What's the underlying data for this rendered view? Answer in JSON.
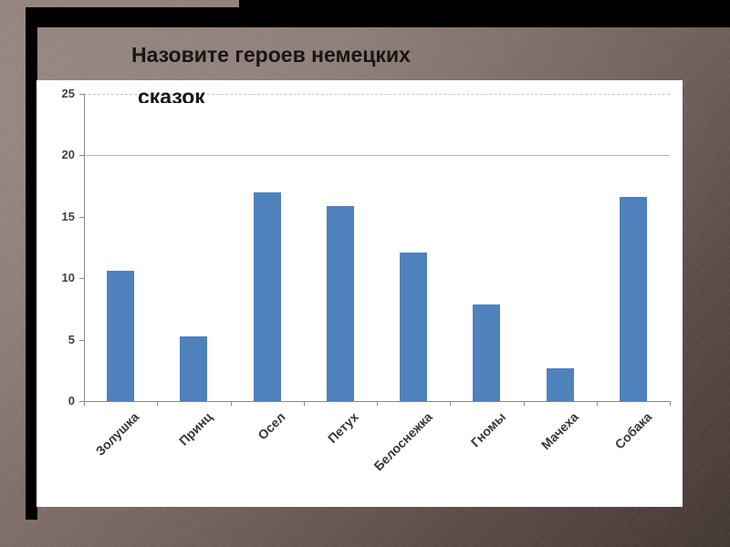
{
  "slide": {
    "title_line1": "Назовите героев немецких",
    "title_line2": "сказок"
  },
  "colors": {
    "bar": "#4f81bd",
    "chart_background": "#ffffff",
    "frame": "#000000",
    "slide_background_light": "#93817b",
    "slide_background_dark": "#453936",
    "title_text": "#161616"
  },
  "chart_data": {
    "type": "bar",
    "title": "",
    "xlabel": "",
    "ylabel": "",
    "categories": [
      "Золушка",
      "Принц",
      "Осел",
      "Петух",
      "Белоснежка",
      "Гномы",
      "Мачеха",
      "Собака"
    ],
    "values": [
      10.6,
      5.3,
      17,
      15.9,
      12.1,
      7.9,
      2.7,
      16.6
    ],
    "ylim": [
      0,
      25
    ],
    "yticks": [
      0,
      5,
      10,
      15,
      20,
      25
    ],
    "gridlines": [
      {
        "value": 20,
        "style": "solid"
      },
      {
        "value": 25,
        "style": "dashed"
      }
    ],
    "legend": "none",
    "bar_color": "#4f81bd",
    "category_label_rotation_deg": -45
  }
}
